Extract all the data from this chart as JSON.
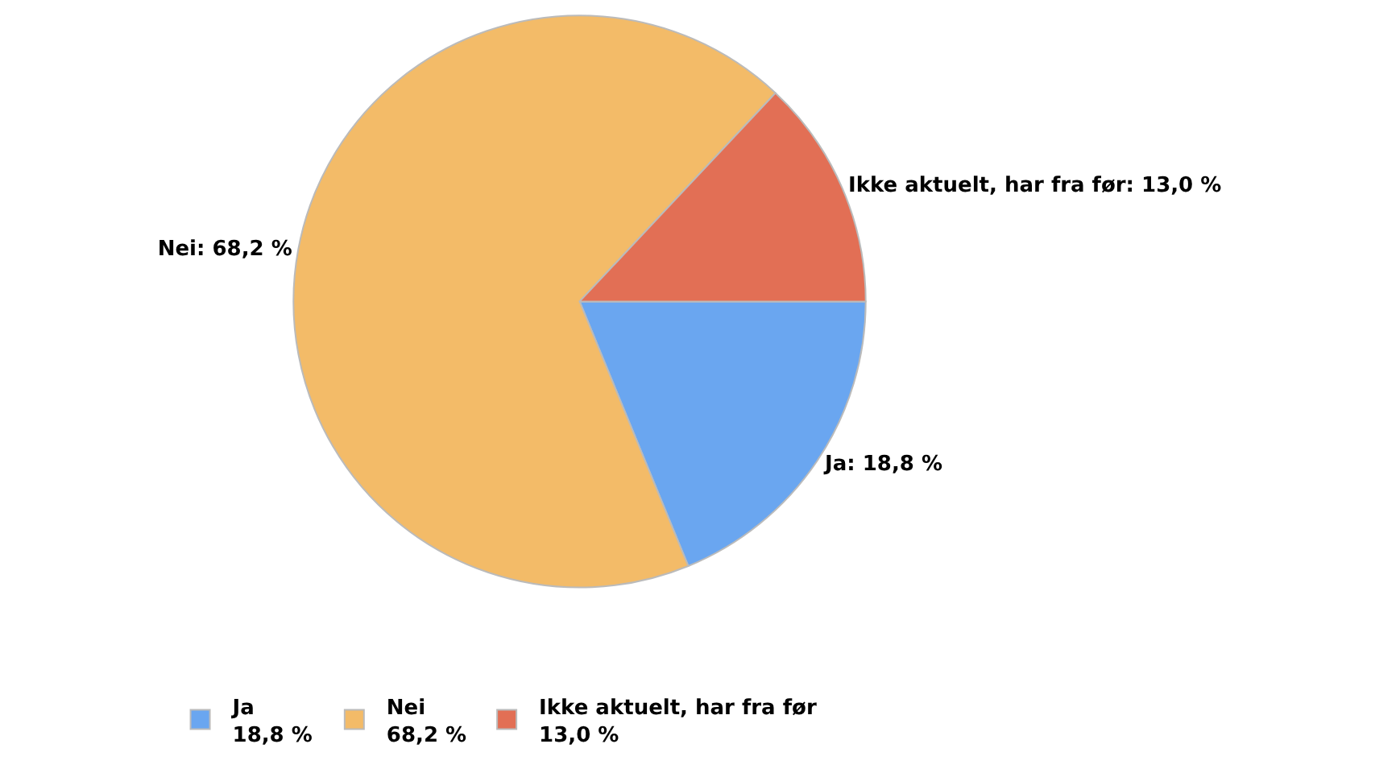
{
  "chart_data": {
    "type": "pie",
    "categories": [
      "Ja",
      "Nei",
      "Ikke aktuelt, har fra før"
    ],
    "values": [
      18.8,
      68.2,
      13.0
    ],
    "value_labels": [
      "Ja: 18,8 %",
      "Nei: 68,2 %",
      "Ikke aktuelt, har fra før: 13,0 %"
    ],
    "annotations": [
      "18,8 %",
      "68,2 %",
      "13,0 %"
    ],
    "colors": [
      "#6aa6f0",
      "#f3bb68",
      "#e26f55"
    ],
    "legend": "bottom"
  }
}
